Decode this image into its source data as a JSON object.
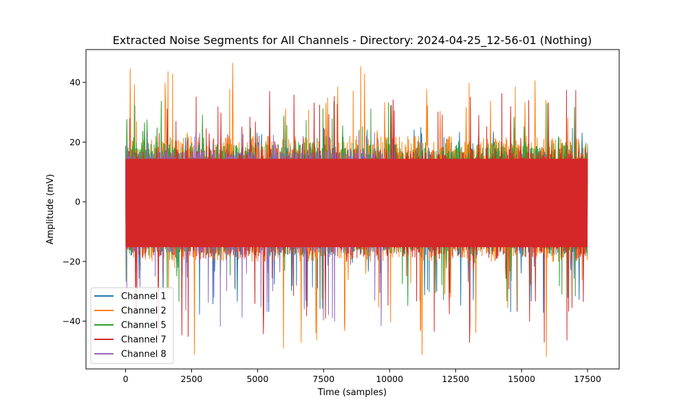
{
  "chart_data": {
    "type": "line",
    "title": "Extracted Noise Segments for All Channels - Directory: 2024-04-25_12-56-01 (Nothing)",
    "xlabel": "Time (samples)",
    "ylabel": "Amplitude (mV)",
    "xlim": [
      -1500,
      18700
    ],
    "ylim": [
      -56,
      51
    ],
    "xticks": [
      0,
      2500,
      5000,
      7500,
      10000,
      12500,
      15000,
      17500
    ],
    "xtick_labels": [
      "0",
      "2500",
      "5000",
      "7500",
      "10000",
      "12500",
      "15000",
      "17500"
    ],
    "yticks": [
      -40,
      -20,
      0,
      20,
      40
    ],
    "ytick_labels": [
      "−40",
      "−20",
      "0",
      "20",
      "40"
    ],
    "grid": false,
    "legend_position": "lower-left",
    "series": [
      {
        "name": "Channel 1",
        "color": "#1f77b4",
        "n_samples": 17500,
        "typical_range": [
          -18,
          18
        ],
        "peak_max": 25,
        "peak_min": -38
      },
      {
        "name": "Channel 2",
        "color": "#ff7f0e",
        "n_samples": 17500,
        "typical_range": [
          -20,
          22
        ],
        "peak_max": 47,
        "peak_min": -52
      },
      {
        "name": "Channel 5",
        "color": "#2ca02c",
        "n_samples": 17500,
        "typical_range": [
          -18,
          20
        ],
        "peak_max": 34,
        "peak_min": -36
      },
      {
        "name": "Channel 7",
        "color": "#d62728",
        "n_samples": 17500,
        "typical_range": [
          -19,
          18
        ],
        "peak_max": 38,
        "peak_min": -48
      },
      {
        "name": "Channel 8",
        "color": "#9467bd",
        "n_samples": 10200,
        "typical_range": [
          -17,
          17
        ],
        "peak_max": 26,
        "peak_min": -42
      }
    ]
  }
}
